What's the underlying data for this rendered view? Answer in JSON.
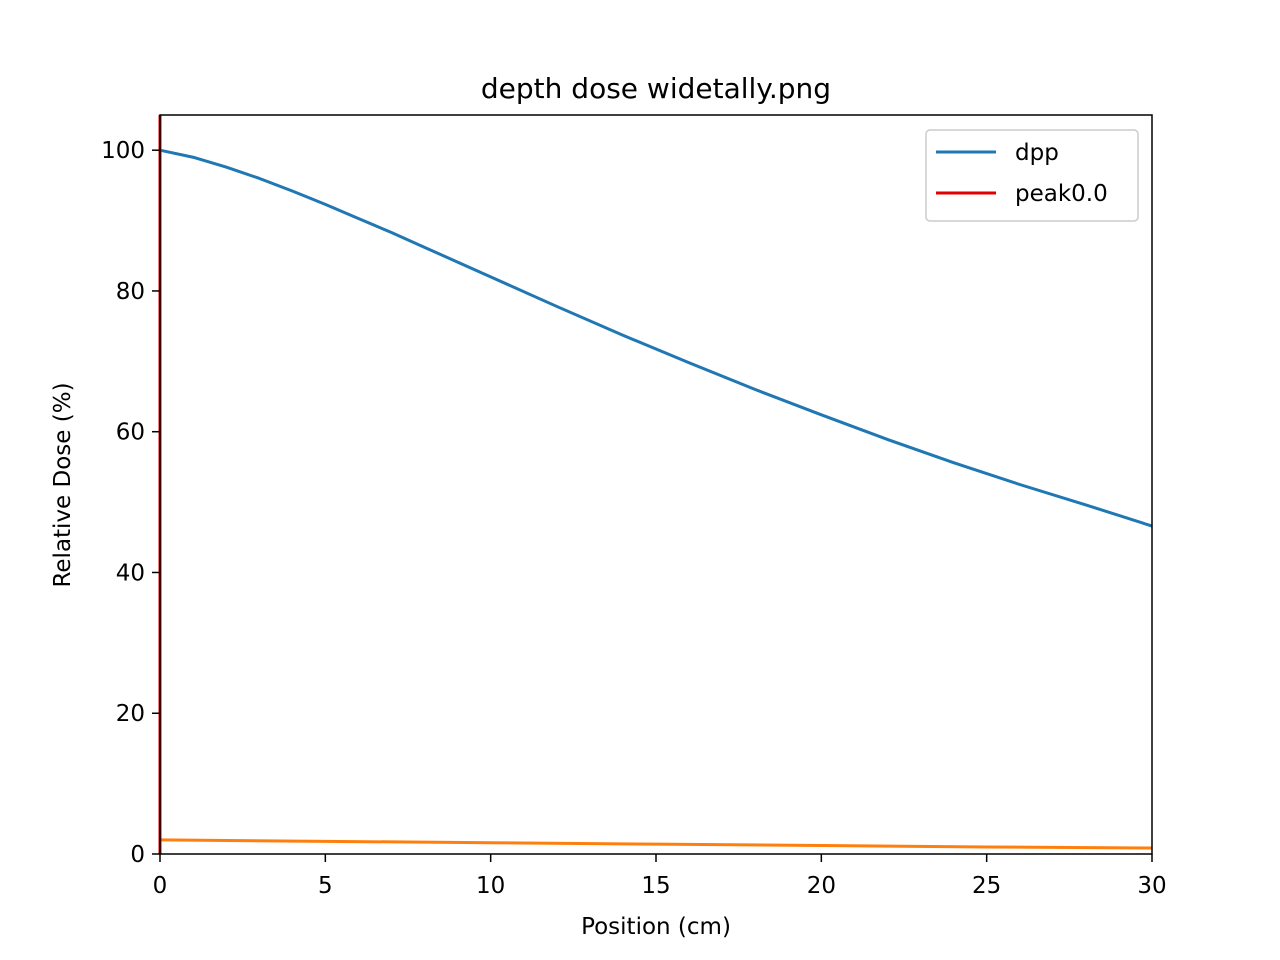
{
  "chart_data": {
    "type": "line",
    "title": "depth dose widetally.png",
    "xlabel": "Position (cm)",
    "ylabel": "Relative Dose (%)",
    "xlim": [
      0,
      30
    ],
    "ylim": [
      0,
      105
    ],
    "grid": false,
    "legend_position": "top-right",
    "xticks": [
      0,
      5,
      10,
      15,
      20,
      25,
      30
    ],
    "yticks": [
      0,
      20,
      40,
      60,
      80,
      100
    ],
    "xtick_labels": [
      "0",
      "5",
      "10",
      "15",
      "20",
      "25",
      "30"
    ],
    "ytick_labels": [
      "0",
      "20",
      "40",
      "60",
      "80",
      "100"
    ],
    "series": [
      {
        "name": "dpp",
        "color": "#1f77b4",
        "in_legend": true,
        "x": [
          0,
          1,
          2,
          3,
          4,
          5,
          6,
          7,
          8,
          9,
          10,
          12,
          14,
          16,
          18,
          20,
          22,
          24,
          26,
          28,
          30
        ],
        "y": [
          100,
          99.0,
          97.6,
          96.0,
          94.2,
          92.3,
          90.3,
          88.3,
          86.2,
          84.1,
          82.0,
          77.8,
          73.7,
          69.8,
          66.0,
          62.4,
          58.9,
          55.6,
          52.5,
          49.6,
          46.6
        ]
      },
      {
        "name": "peak0.0",
        "color": "#e00000",
        "in_legend": true,
        "x": [
          0,
          0
        ],
        "y": [
          0,
          105
        ]
      },
      {
        "name": "",
        "color": "#ff7f0e",
        "in_legend": false,
        "x": [
          0,
          5,
          10,
          15,
          20,
          25,
          30
        ],
        "y": [
          2.0,
          1.8,
          1.6,
          1.4,
          1.2,
          1.0,
          0.85
        ]
      }
    ]
  }
}
